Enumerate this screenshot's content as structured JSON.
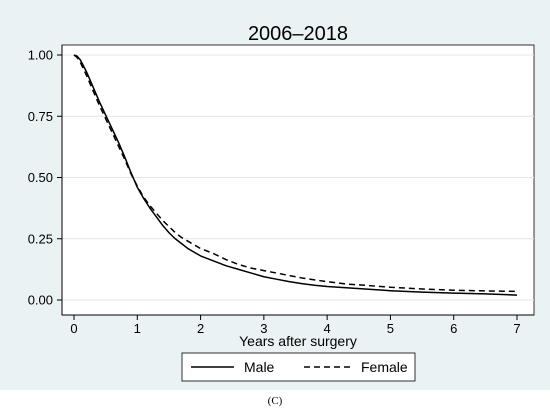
{
  "panel_label": "(C)",
  "chart_data": {
    "type": "line",
    "title": "2006–2018",
    "xlabel": "Years after surgery",
    "ylabel": "",
    "xlim": [
      0,
      7
    ],
    "ylim": [
      0,
      1
    ],
    "x_ticks": [
      0,
      1,
      2,
      3,
      4,
      5,
      6,
      7
    ],
    "y_ticks": [
      0.0,
      0.25,
      0.5,
      0.75,
      1.0
    ],
    "x_tick_labels": [
      "0",
      "1",
      "2",
      "3",
      "4",
      "5",
      "6",
      "7"
    ],
    "y_tick_labels": [
      "0.00",
      "0.25",
      "0.50",
      "0.75",
      "1.00"
    ],
    "grid": "horizontal",
    "legend_position": "bottom",
    "background": "#ffffff",
    "plot_background": "#ffffff",
    "outer_background": "#eaf2f3",
    "series": [
      {
        "name": "Male",
        "line_style": "solid",
        "color": "#000000",
        "points": [
          [
            0.0,
            1.0
          ],
          [
            0.05,
            0.995
          ],
          [
            0.1,
            0.98
          ],
          [
            0.2,
            0.93
          ],
          [
            0.3,
            0.87
          ],
          [
            0.4,
            0.81
          ],
          [
            0.5,
            0.755
          ],
          [
            0.6,
            0.7
          ],
          [
            0.7,
            0.645
          ],
          [
            0.8,
            0.585
          ],
          [
            0.9,
            0.52
          ],
          [
            1.0,
            0.46
          ],
          [
            1.1,
            0.415
          ],
          [
            1.2,
            0.375
          ],
          [
            1.3,
            0.34
          ],
          [
            1.4,
            0.305
          ],
          [
            1.5,
            0.275
          ],
          [
            1.6,
            0.25
          ],
          [
            1.7,
            0.23
          ],
          [
            1.8,
            0.21
          ],
          [
            1.9,
            0.195
          ],
          [
            2.0,
            0.18
          ],
          [
            2.2,
            0.16
          ],
          [
            2.4,
            0.14
          ],
          [
            2.6,
            0.125
          ],
          [
            2.8,
            0.11
          ],
          [
            3.0,
            0.095
          ],
          [
            3.2,
            0.085
          ],
          [
            3.4,
            0.075
          ],
          [
            3.6,
            0.067
          ],
          [
            3.8,
            0.06
          ],
          [
            4.0,
            0.055
          ],
          [
            4.3,
            0.05
          ],
          [
            4.6,
            0.045
          ],
          [
            5.0,
            0.038
          ],
          [
            5.5,
            0.032
          ],
          [
            6.0,
            0.028
          ],
          [
            6.5,
            0.025
          ],
          [
            7.0,
            0.02
          ]
        ]
      },
      {
        "name": "Female",
        "line_style": "dashed",
        "color": "#000000",
        "points": [
          [
            0.0,
            1.0
          ],
          [
            0.05,
            0.99
          ],
          [
            0.1,
            0.97
          ],
          [
            0.2,
            0.915
          ],
          [
            0.3,
            0.855
          ],
          [
            0.4,
            0.795
          ],
          [
            0.5,
            0.74
          ],
          [
            0.6,
            0.685
          ],
          [
            0.7,
            0.63
          ],
          [
            0.8,
            0.575
          ],
          [
            0.9,
            0.515
          ],
          [
            1.0,
            0.465
          ],
          [
            1.1,
            0.42
          ],
          [
            1.2,
            0.385
          ],
          [
            1.3,
            0.355
          ],
          [
            1.4,
            0.325
          ],
          [
            1.5,
            0.3
          ],
          [
            1.6,
            0.275
          ],
          [
            1.7,
            0.255
          ],
          [
            1.8,
            0.24
          ],
          [
            1.9,
            0.225
          ],
          [
            2.0,
            0.21
          ],
          [
            2.2,
            0.19
          ],
          [
            2.4,
            0.165
          ],
          [
            2.6,
            0.145
          ],
          [
            2.8,
            0.13
          ],
          [
            3.0,
            0.12
          ],
          [
            3.2,
            0.11
          ],
          [
            3.4,
            0.1
          ],
          [
            3.6,
            0.09
          ],
          [
            3.8,
            0.082
          ],
          [
            4.0,
            0.075
          ],
          [
            4.3,
            0.065
          ],
          [
            4.6,
            0.06
          ],
          [
            5.0,
            0.052
          ],
          [
            5.5,
            0.045
          ],
          [
            6.0,
            0.04
          ],
          [
            6.5,
            0.037
          ],
          [
            7.0,
            0.035
          ]
        ]
      }
    ]
  }
}
